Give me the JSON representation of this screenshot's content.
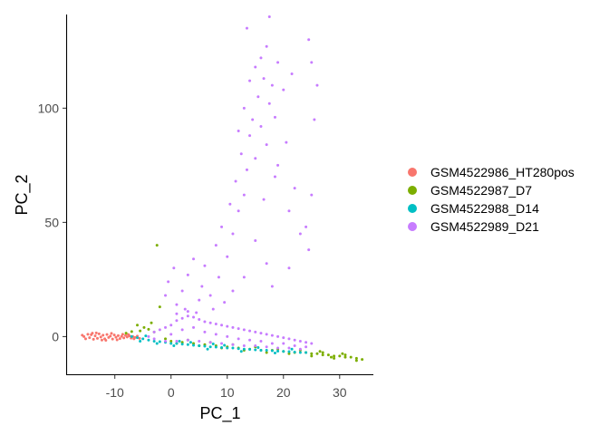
{
  "chart_data": {
    "type": "scatter",
    "title": "",
    "xlabel": "PC_1",
    "ylabel": "PC_2",
    "xlim": [
      -18.5,
      36
    ],
    "ylim": [
      -16.5,
      141
    ],
    "xticks": [
      -10,
      0,
      10,
      20,
      30
    ],
    "yticks": [
      0,
      50,
      100
    ],
    "grid": false,
    "legend_position": "right",
    "series": [
      {
        "name": "GSM4522986_HT280pos",
        "color": "#F8766D",
        "points": [
          [
            -15.5,
            0
          ],
          [
            -15.2,
            -1
          ],
          [
            -14.8,
            1
          ],
          [
            -14.5,
            -0.5
          ],
          [
            -14.2,
            0.8
          ],
          [
            -13.8,
            -1.2
          ],
          [
            -13.5,
            0.3
          ],
          [
            -13.1,
            -0.8
          ],
          [
            -12.8,
            1.2
          ],
          [
            -12.5,
            -0.2
          ],
          [
            -12.1,
            0.6
          ],
          [
            -11.8,
            -1
          ],
          [
            -11.4,
            0.9
          ],
          [
            -11.1,
            -0.4
          ],
          [
            -10.8,
            0.2
          ],
          [
            -10.4,
            -1.1
          ],
          [
            -10.1,
            0.7
          ],
          [
            -9.8,
            -0.3
          ],
          [
            -9.4,
            0.4
          ],
          [
            -9.1,
            -0.9
          ],
          [
            -8.8,
            0.1
          ],
          [
            -8.4,
            -0.6
          ],
          [
            -8.1,
            0.5
          ],
          [
            -7.8,
            -0.2
          ],
          [
            -7.4,
            0.3
          ],
          [
            -7.1,
            -0.7
          ],
          [
            -6.8,
            0
          ],
          [
            -6.4,
            -0.4
          ],
          [
            -6,
            0.2
          ],
          [
            -5.6,
            -0.8
          ],
          [
            -15.8,
            0.6
          ],
          [
            -14,
            1.5
          ],
          [
            -12.3,
            -1.5
          ],
          [
            -10.6,
            1.4
          ],
          [
            -9.6,
            -1.4
          ],
          [
            -8.6,
            1
          ],
          [
            -13.3,
            1.6
          ],
          [
            -11.6,
            -1.6
          ],
          [
            -7.6,
            0.9
          ],
          [
            -6.6,
            -1
          ]
        ]
      },
      {
        "name": "GSM4522987_D7",
        "color": "#7CAE00",
        "points": [
          [
            -6,
            5
          ],
          [
            -4.8,
            4
          ],
          [
            -3,
            2
          ],
          [
            -5.5,
            2.5
          ],
          [
            -3.5,
            6
          ],
          [
            -2,
            13
          ],
          [
            -2.5,
            40
          ],
          [
            -1,
            -1
          ],
          [
            0,
            -2
          ],
          [
            2,
            -2.5
          ],
          [
            4,
            -3
          ],
          [
            6,
            -3.5
          ],
          [
            8,
            -4
          ],
          [
            10,
            -4.5
          ],
          [
            12,
            -5
          ],
          [
            14,
            -5.5
          ],
          [
            16,
            -6
          ],
          [
            18,
            -6
          ],
          [
            20,
            -6.5
          ],
          [
            22,
            -7
          ],
          [
            24,
            -7
          ],
          [
            25,
            -7.5
          ],
          [
            26,
            -7.5
          ],
          [
            27,
            -8
          ],
          [
            28,
            -8
          ],
          [
            29,
            -8.5
          ],
          [
            30,
            -8.5
          ],
          [
            31,
            -9
          ],
          [
            32,
            -9
          ],
          [
            33,
            -9.5
          ],
          [
            34,
            -10
          ],
          [
            1,
            -3
          ],
          [
            3,
            -1.5
          ],
          [
            5,
            -4
          ],
          [
            7,
            -2.5
          ],
          [
            9,
            -5
          ],
          [
            11,
            -3.5
          ],
          [
            13,
            -6
          ],
          [
            15,
            -4.5
          ],
          [
            17,
            -7
          ],
          [
            19,
            -5.5
          ],
          [
            21,
            -7.5
          ],
          [
            23,
            -6
          ],
          [
            25,
            -8.5
          ],
          [
            27,
            -7
          ],
          [
            29,
            -9.5
          ],
          [
            31,
            -8
          ],
          [
            33,
            -10.5
          ],
          [
            26.5,
            -6.5
          ],
          [
            28.5,
            -9
          ],
          [
            30.5,
            -7.5
          ],
          [
            -8,
            1.5
          ],
          [
            -7,
            2.2
          ],
          [
            -4,
            3.2
          ]
        ]
      },
      {
        "name": "GSM4522988_D14",
        "color": "#00BFC4",
        "points": [
          [
            -7,
            0
          ],
          [
            -6,
            -0.5
          ],
          [
            -5,
            -1
          ],
          [
            -4,
            -1.5
          ],
          [
            -3,
            -2
          ],
          [
            -2,
            -2.2
          ],
          [
            -1,
            -2.5
          ],
          [
            0,
            -3
          ],
          [
            1,
            -3
          ],
          [
            2,
            -3.3
          ],
          [
            3,
            -3.5
          ],
          [
            4,
            -3.8
          ],
          [
            5,
            -4
          ],
          [
            6,
            -4.2
          ],
          [
            7,
            -4.5
          ],
          [
            8,
            -4.6
          ],
          [
            9,
            -4.8
          ],
          [
            10,
            -5
          ],
          [
            11,
            -5
          ],
          [
            12,
            -5.3
          ],
          [
            13,
            -5.5
          ],
          [
            14,
            -5.6
          ],
          [
            15,
            -5.8
          ],
          [
            16,
            -6
          ],
          [
            17,
            -6
          ],
          [
            18,
            -6.2
          ],
          [
            19,
            -6.4
          ],
          [
            20,
            -6.5
          ],
          [
            21,
            -6.6
          ],
          [
            22,
            -6.8
          ],
          [
            23,
            -7
          ],
          [
            24,
            -7
          ],
          [
            -5.5,
            -2
          ],
          [
            -2.5,
            -3
          ],
          [
            0.5,
            -4
          ],
          [
            3.5,
            -2.5
          ],
          [
            6.5,
            -5.5
          ],
          [
            9.5,
            -3.8
          ],
          [
            12.5,
            -6.5
          ],
          [
            15.5,
            -4.8
          ],
          [
            18.5,
            -7.2
          ],
          [
            21.5,
            -5.5
          ],
          [
            -4.5,
            0.3
          ],
          [
            1.5,
            -2
          ],
          [
            7.5,
            -3.2
          ]
        ]
      },
      {
        "name": "GSM4522989_D21",
        "color": "#C77CFF",
        "points": [
          [
            -4,
            0
          ],
          [
            -3,
            2
          ],
          [
            -2,
            3
          ],
          [
            -1,
            4
          ],
          [
            0,
            5
          ],
          [
            1,
            7
          ],
          [
            2,
            8
          ],
          [
            3,
            9
          ],
          [
            4,
            8.5
          ],
          [
            5,
            7.5
          ],
          [
            6,
            6.5
          ],
          [
            7,
            6
          ],
          [
            8,
            5.5
          ],
          [
            9,
            5
          ],
          [
            10,
            4.5
          ],
          [
            11,
            4
          ],
          [
            12,
            3.5
          ],
          [
            13,
            3
          ],
          [
            14,
            2.5
          ],
          [
            15,
            2
          ],
          [
            16,
            1.5
          ],
          [
            17,
            1
          ],
          [
            18,
            0.5
          ],
          [
            19,
            0
          ],
          [
            20,
            -0.5
          ],
          [
            21,
            -1
          ],
          [
            22,
            -1.5
          ],
          [
            23,
            -2
          ],
          [
            24,
            -2.5
          ],
          [
            25,
            -3
          ],
          [
            -3,
            -1
          ],
          [
            -1,
            -2
          ],
          [
            1,
            -2
          ],
          [
            3,
            -1.5
          ],
          [
            5,
            -2
          ],
          [
            7,
            -2.5
          ],
          [
            9,
            -3
          ],
          [
            11,
            -3.5
          ],
          [
            13,
            -4
          ],
          [
            15,
            -4
          ],
          [
            17,
            -4.5
          ],
          [
            19,
            -5
          ],
          [
            21,
            -5
          ],
          [
            23,
            -5.5
          ],
          [
            0,
            1
          ],
          [
            2,
            3
          ],
          [
            4,
            4
          ],
          [
            6,
            2
          ],
          [
            8,
            1
          ],
          [
            10,
            0
          ],
          [
            12,
            -1
          ],
          [
            14,
            -1.5
          ],
          [
            16,
            -2
          ],
          [
            18,
            -3
          ],
          [
            20,
            -3
          ],
          [
            22,
            -4
          ],
          [
            24,
            -4.5
          ],
          [
            1,
            10
          ],
          [
            3,
            11
          ],
          [
            2.5,
            12
          ],
          [
            4.5,
            10.5
          ],
          [
            -1,
            18
          ],
          [
            -0.5,
            24
          ],
          [
            0.5,
            30
          ],
          [
            1,
            14
          ],
          [
            2,
            20
          ],
          [
            3,
            27
          ],
          [
            4,
            34
          ],
          [
            5,
            16
          ],
          [
            5.5,
            22
          ],
          [
            6,
            31
          ],
          [
            7,
            18
          ],
          [
            7.5,
            12
          ],
          [
            8,
            40
          ],
          [
            8.5,
            26
          ],
          [
            9,
            48
          ],
          [
            10,
            35
          ],
          [
            10.5,
            58
          ],
          [
            11,
            45
          ],
          [
            11.5,
            68
          ],
          [
            12,
            55
          ],
          [
            12,
            90
          ],
          [
            12.5,
            80
          ],
          [
            13,
            62
          ],
          [
            13,
            100
          ],
          [
            13.5,
            73
          ],
          [
            14,
            88
          ],
          [
            14,
            112
          ],
          [
            14.5,
            95
          ],
          [
            15,
            78
          ],
          [
            15,
            118
          ],
          [
            15.5,
            105
          ],
          [
            16,
            122
          ],
          [
            16,
            92
          ],
          [
            16.5,
            113
          ],
          [
            17,
            127
          ],
          [
            17,
            84
          ],
          [
            17.5,
            102
          ],
          [
            18,
            110
          ],
          [
            18.5,
            96
          ],
          [
            19,
            120
          ],
          [
            19,
            75
          ],
          [
            20,
            108
          ],
          [
            20.5,
            85
          ],
          [
            21,
            55
          ],
          [
            21.5,
            115
          ],
          [
            22,
            65
          ],
          [
            24,
            48
          ],
          [
            24.5,
            130
          ],
          [
            25,
            120
          ],
          [
            26,
            110
          ],
          [
            25.5,
            95
          ],
          [
            25,
            62
          ],
          [
            24.5,
            38
          ],
          [
            23,
            45
          ],
          [
            21,
            30
          ],
          [
            18,
            22
          ],
          [
            17,
            32
          ],
          [
            15,
            42
          ],
          [
            13,
            26
          ],
          [
            11,
            20
          ],
          [
            9.5,
            15
          ],
          [
            16.5,
            60
          ],
          [
            18.5,
            70
          ],
          [
            13.5,
            135
          ],
          [
            17.5,
            140
          ]
        ]
      }
    ]
  }
}
